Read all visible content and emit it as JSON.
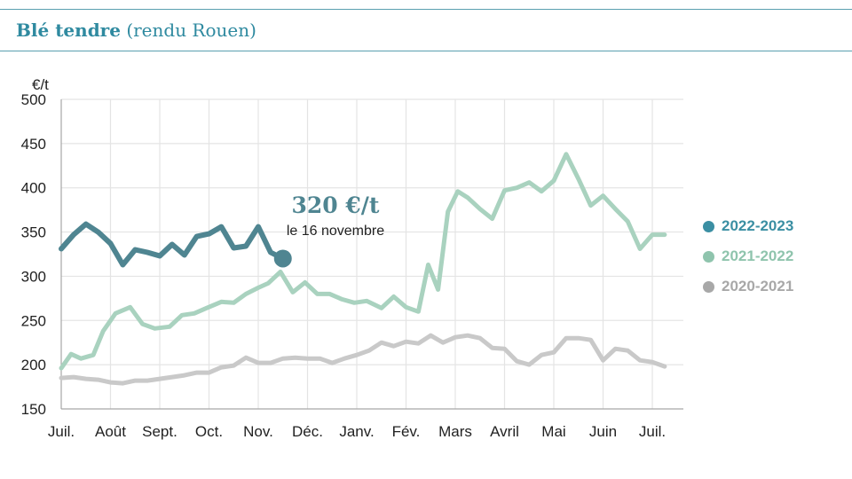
{
  "title": {
    "main": "Blé tendre",
    "sub": "(rendu Rouen)"
  },
  "colors": {
    "s2022": "#4f8591",
    "s2021": "#a9d2bf",
    "s2020": "#c9c9c9",
    "legend2022": "#3b8fa3",
    "legend2021": "#8fc4ad",
    "legend2020": "#a8a8a8",
    "grid": "#e4e4e4",
    "axis": "#999999"
  },
  "annotation": {
    "value": "320 €/t",
    "date": "le 16 novembre"
  },
  "legend": [
    {
      "label": "2022-2023",
      "series": "s2022"
    },
    {
      "label": "2021-2022",
      "series": "s2021"
    },
    {
      "label": "2020-2021",
      "series": "s2020"
    }
  ],
  "chart_data": {
    "type": "line",
    "ylabel": "€/t",
    "ylim": [
      150,
      500
    ],
    "yticks": [
      150,
      200,
      250,
      300,
      350,
      400,
      450,
      500
    ],
    "categories": [
      "Juil.",
      "Août",
      "Sept.",
      "Oct.",
      "Nov.",
      "Déc.",
      "Janv.",
      "Fév.",
      "Mars",
      "Avril",
      "Mai",
      "Juin",
      "Juil."
    ],
    "grid": true,
    "legend_position": "right",
    "series": [
      {
        "name": "2022-2023",
        "key": "s2022",
        "x": [
          0,
          0.25,
          0.5,
          0.75,
          1,
          1.25,
          1.5,
          1.75,
          2,
          2.25,
          2.5,
          2.75,
          3,
          3.25,
          3.5,
          3.75,
          4,
          4.25,
          4.5
        ],
        "values": [
          331,
          347,
          359,
          350,
          337,
          313,
          330,
          327,
          323,
          336,
          324,
          345,
          348,
          356,
          332,
          334,
          356,
          327,
          320
        ]
      },
      {
        "name": "2021-2022",
        "key": "s2021",
        "x": [
          0,
          0.2,
          0.4,
          0.65,
          0.85,
          1.1,
          1.4,
          1.65,
          1.9,
          2.2,
          2.45,
          2.7,
          2.95,
          3.25,
          3.5,
          3.75,
          4,
          4.2,
          4.45,
          4.7,
          4.95,
          5.2,
          5.45,
          5.7,
          5.95,
          6.2,
          6.5,
          6.75,
          7,
          7.25,
          7.45,
          7.65,
          7.85,
          8.05,
          8.25,
          8.5,
          8.75,
          9,
          9.25,
          9.5,
          9.75,
          10,
          10.25,
          10.5,
          10.75,
          11,
          11.25,
          11.5,
          11.75,
          12,
          12.25
        ],
        "values": [
          196,
          212,
          207,
          211,
          238,
          258,
          265,
          246,
          241,
          243,
          256,
          258,
          264,
          271,
          270,
          280,
          287,
          292,
          305,
          282,
          293,
          280,
          280,
          274,
          270,
          272,
          264,
          277,
          265,
          260,
          313,
          285,
          373,
          396,
          389,
          376,
          365,
          397,
          400,
          406,
          396,
          408,
          438,
          410,
          380,
          391,
          376,
          362,
          331,
          347,
          347
        ]
      },
      {
        "name": "2020-2021",
        "key": "s2020",
        "x": [
          0,
          0.25,
          0.5,
          0.75,
          1,
          1.25,
          1.5,
          1.75,
          2,
          2.25,
          2.5,
          2.75,
          3,
          3.25,
          3.5,
          3.75,
          4,
          4.25,
          4.5,
          4.75,
          5,
          5.25,
          5.5,
          5.75,
          6,
          6.25,
          6.5,
          6.75,
          7,
          7.25,
          7.5,
          7.75,
          8,
          8.25,
          8.5,
          8.75,
          9,
          9.25,
          9.5,
          9.75,
          10,
          10.25,
          10.5,
          10.75,
          11,
          11.25,
          11.5,
          11.75,
          12,
          12.25
        ],
        "values": [
          185,
          186,
          184,
          183,
          180,
          179,
          182,
          182,
          184,
          186,
          188,
          191,
          191,
          197,
          199,
          208,
          202,
          202,
          207,
          208,
          207,
          207,
          202,
          207,
          211,
          216,
          225,
          221,
          226,
          224,
          233,
          225,
          231,
          233,
          230,
          219,
          218,
          204,
          200,
          211,
          214,
          230,
          230,
          228,
          205,
          218,
          216,
          205,
          203,
          198
        ]
      }
    ]
  }
}
